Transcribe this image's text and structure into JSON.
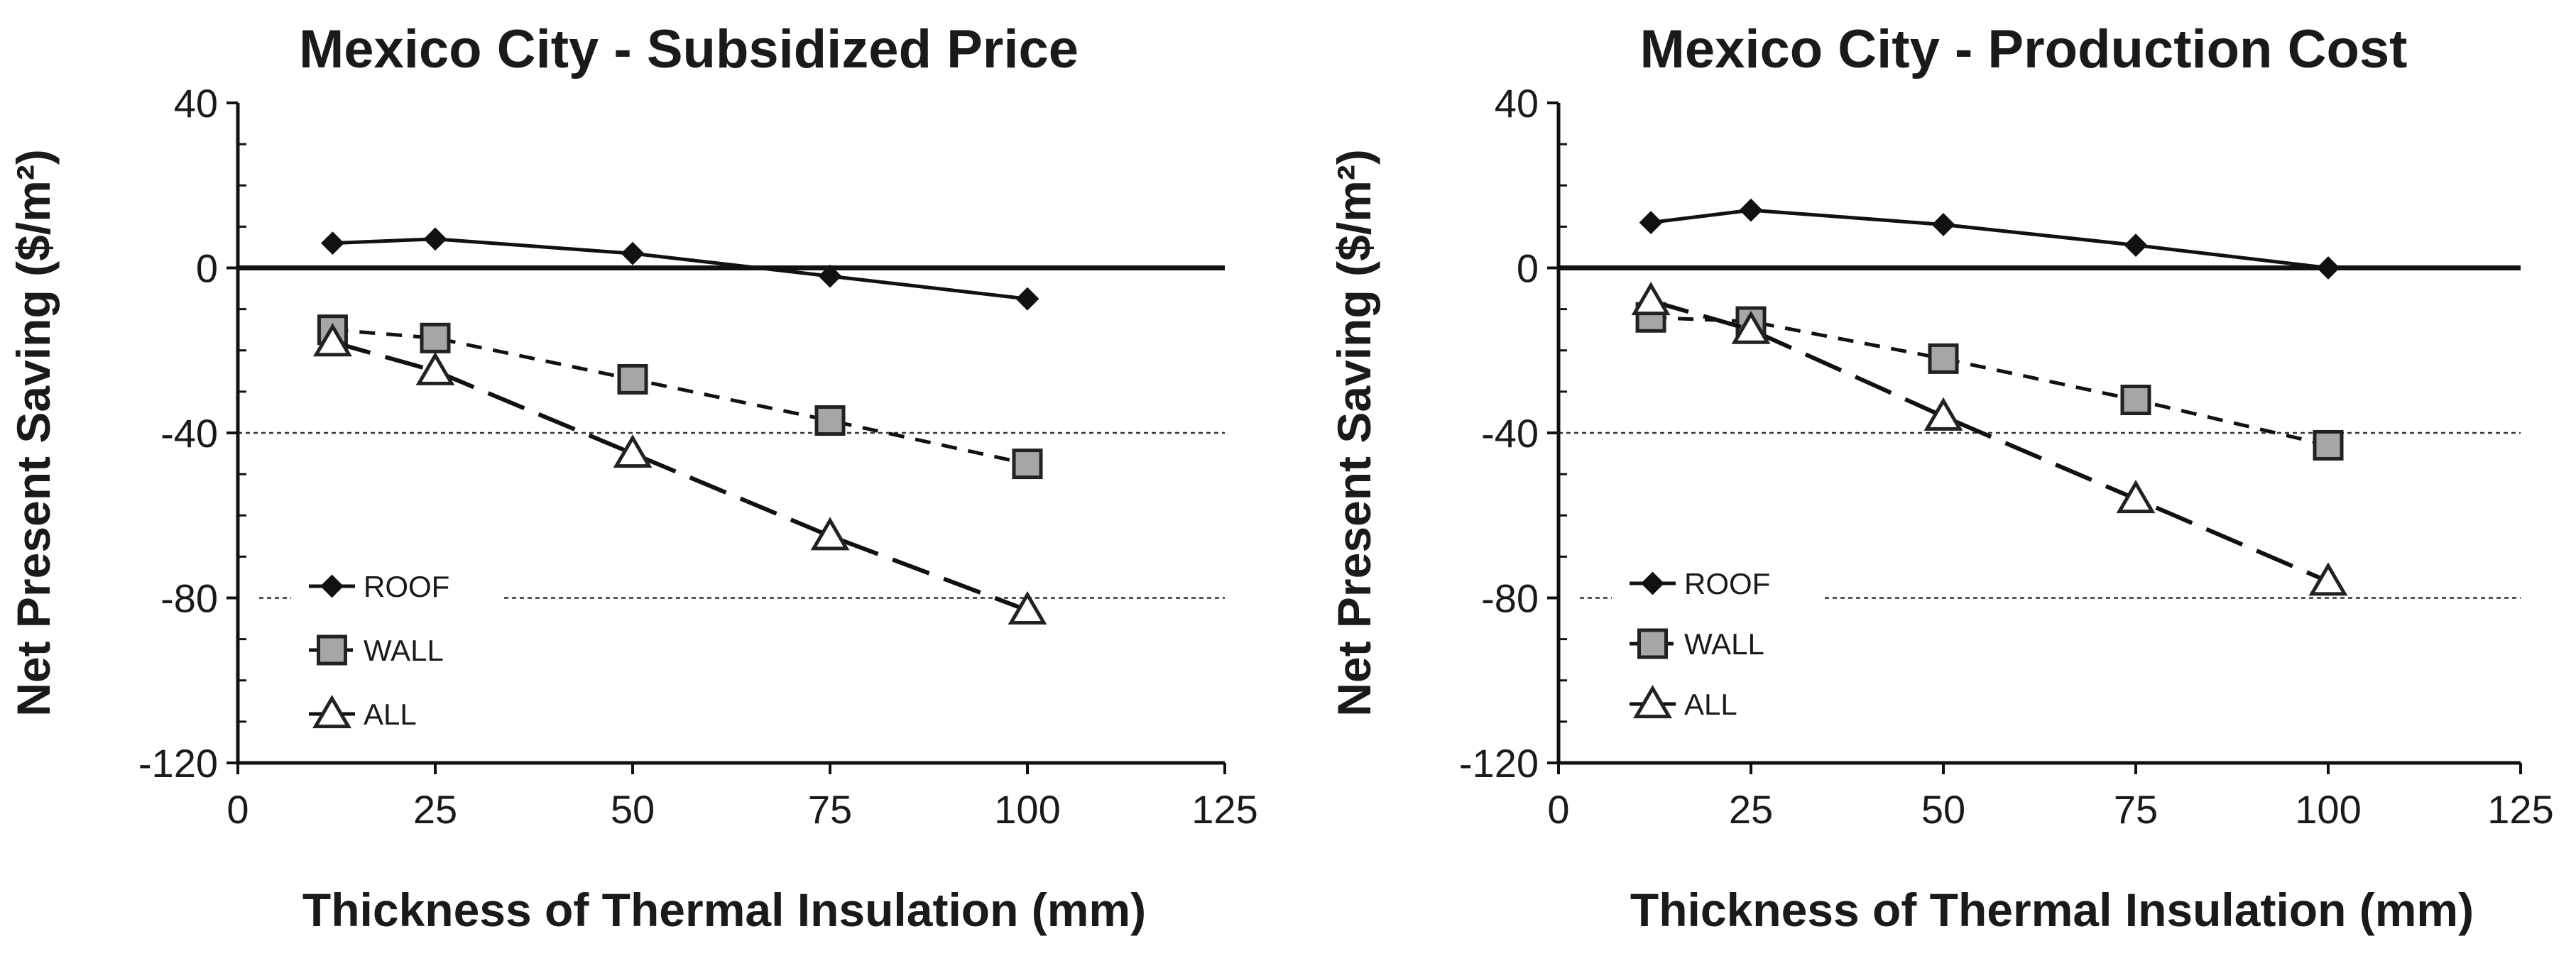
{
  "chart_data": [
    {
      "type": "line",
      "title": "Mexico City - Subsidized Price",
      "xlabel": "Thickness of Thermal Insulation  (mm)",
      "ylabel": "Net Present Saving  ($/m²)",
      "xlim": [
        0,
        125
      ],
      "ylim": [
        -120,
        40
      ],
      "xticks": [
        0,
        25,
        50,
        75,
        100,
        125
      ],
      "yticks": [
        40,
        0,
        -40,
        -80,
        -120
      ],
      "xtick_labels": [
        "0",
        "25",
        "50",
        "75",
        "100",
        "125"
      ],
      "ytick_labels": [
        "40",
        "0",
        "-40",
        "-80",
        "-120"
      ],
      "legend_position": "bottom-left",
      "series": [
        {
          "name": "ROOF",
          "marker": "diamond",
          "line": "solid",
          "x": [
            12,
            25,
            50,
            75,
            100
          ],
          "y": [
            6,
            7,
            3.5,
            -2,
            -7.5
          ]
        },
        {
          "name": "WALL",
          "marker": "square",
          "line": "short-dash",
          "x": [
            12,
            25,
            50,
            75,
            100
          ],
          "y": [
            -15,
            -17,
            -27,
            -37,
            -47.5
          ]
        },
        {
          "name": "ALL",
          "marker": "triangle",
          "line": "long-dash",
          "x": [
            12,
            25,
            50,
            75,
            100
          ],
          "y": [
            -18,
            -25,
            -45,
            -65,
            -83
          ]
        }
      ]
    },
    {
      "type": "line",
      "title": "Mexico City - Production Cost",
      "xlabel": "Thickness of Thermal Insulation  (mm)",
      "ylabel": "Net Present Saving  ($/m²)",
      "xlim": [
        0,
        125
      ],
      "ylim": [
        -120,
        40
      ],
      "xticks": [
        0,
        25,
        50,
        75,
        100,
        125
      ],
      "yticks": [
        40,
        0,
        -40,
        -80,
        -120
      ],
      "xtick_labels": [
        "0",
        "25",
        "50",
        "75",
        "100",
        "125"
      ],
      "ytick_labels": [
        "40",
        "0",
        "-40",
        "-80",
        "-120"
      ],
      "legend_position": "bottom-left",
      "series": [
        {
          "name": "ROOF",
          "marker": "diamond",
          "line": "solid",
          "x": [
            12,
            25,
            50,
            75,
            100
          ],
          "y": [
            11,
            14,
            10.5,
            5.5,
            0
          ]
        },
        {
          "name": "WALL",
          "marker": "square",
          "line": "short-dash",
          "x": [
            12,
            25,
            50,
            75,
            100
          ],
          "y": [
            -12,
            -13,
            -22,
            -32,
            -43
          ]
        },
        {
          "name": "ALL",
          "marker": "triangle",
          "line": "long-dash",
          "x": [
            12,
            25,
            50,
            75,
            100
          ],
          "y": [
            -8,
            -15,
            -36,
            -56,
            -76
          ]
        }
      ]
    }
  ],
  "colors": {
    "line": "#111111",
    "marker_fill": "#a6a6a6",
    "triangle_fill": "#ffffff",
    "gridline": "#333333"
  }
}
